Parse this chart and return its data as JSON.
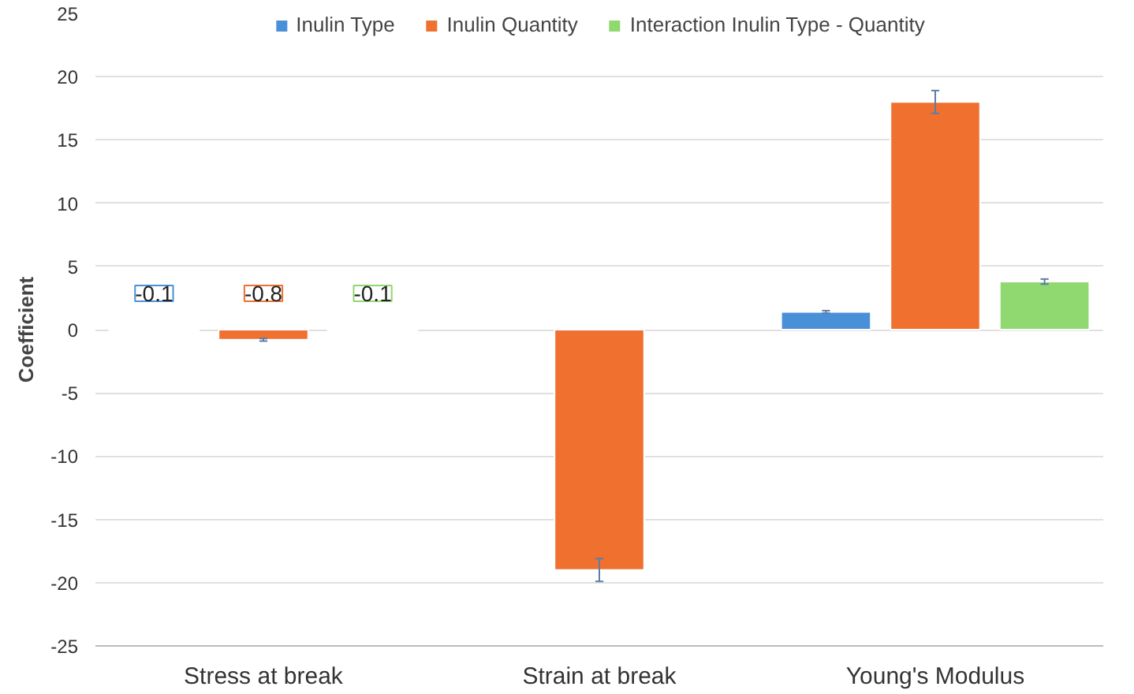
{
  "chart_data": {
    "type": "bar",
    "ylabel": "Coefficient",
    "categories": [
      "Stress at break",
      "Strain at break",
      "Young's Modulus"
    ],
    "series": [
      {
        "name": "Inulin Type",
        "color": "#4a90d9",
        "values": [
          -0.1,
          null,
          1.4
        ],
        "errors": [
          null,
          null,
          0.1
        ],
        "value_labels": [
          "-0.1",
          null,
          null
        ]
      },
      {
        "name": "Inulin Quantity",
        "color": "#f07030",
        "values": [
          -0.8,
          -19,
          18
        ],
        "errors": [
          0.1,
          0.9,
          0.9
        ],
        "value_labels": [
          "-0.8",
          null,
          null
        ]
      },
      {
        "name": "Interaction Inulin Type - Quantity",
        "color": "#90d870",
        "values": [
          -0.1,
          null,
          3.8
        ],
        "errors": [
          null,
          null,
          0.2
        ],
        "value_labels": [
          "-0.1",
          null,
          null
        ]
      }
    ],
    "ylim": [
      -25,
      25
    ],
    "yticks": [
      -25,
      -20,
      -15,
      -10,
      -5,
      0,
      5,
      10,
      15,
      20,
      25
    ],
    "grid": "y",
    "legend": "top"
  }
}
